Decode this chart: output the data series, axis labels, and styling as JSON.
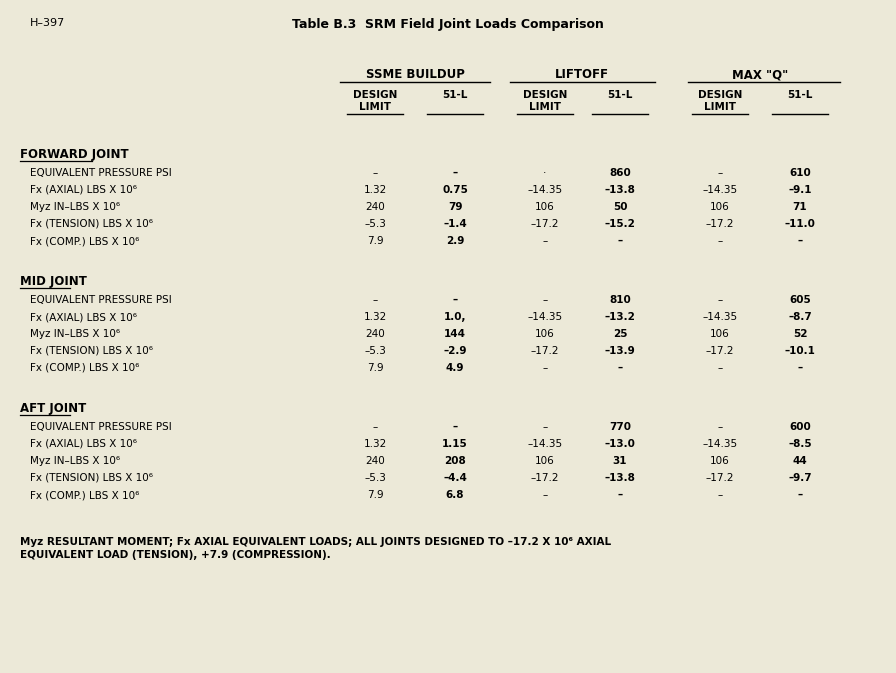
{
  "title": "Table B.3  SRM Field Joint Loads Comparison",
  "header_ref": "H–397",
  "bg_color": "#ece9d8",
  "groups": [
    "SSME BUILDUP",
    "LIFTOFF",
    "MAX \"Q\""
  ],
  "col_subheaders": [
    "DESIGN\nLIMIT",
    "51-L",
    "DESIGN\nLIMIT",
    "51-L",
    "DESIGN\nLIMIT",
    "51-L"
  ],
  "sections": [
    {
      "name": "FORWARD JOINT",
      "rows": [
        {
          "label": "EQUIVALENT PRESSURE PSI",
          "values": [
            "–",
            "–",
            "·",
            "860",
            "–",
            "610"
          ]
        },
        {
          "label": "Fx (AXIAL) LBS X 10⁶",
          "values": [
            "1.32",
            "0.75",
            "–14.35",
            "–13.8",
            "–14.35",
            "–9.1"
          ]
        },
        {
          "label": "Myz IN–LBS X 10⁶",
          "values": [
            "240",
            "79",
            "106",
            "50",
            "106",
            "71"
          ]
        },
        {
          "label": "Fx (TENSION) LBS X 10⁶",
          "values": [
            "–5.3",
            "–1.4",
            "–17.2",
            "–15.2",
            "–17.2",
            "–11.0"
          ]
        },
        {
          "label": "Fx (COMP.) LBS X 10⁶",
          "values": [
            "7.9",
            "2.9",
            "–",
            "–",
            "–",
            "–"
          ]
        }
      ]
    },
    {
      "name": "MID JOINT",
      "rows": [
        {
          "label": "EQUIVALENT PRESSURE PSI",
          "values": [
            "–",
            "–",
            "–",
            "810",
            "–",
            "605"
          ]
        },
        {
          "label": "Fx (AXIAL) LBS X 10⁶",
          "values": [
            "1.32",
            "1.0,",
            "–14.35",
            "–13.2",
            "–14.35",
            "–8.7"
          ]
        },
        {
          "label": "Myz IN–LBS X 10⁶",
          "values": [
            "240",
            "144",
            "106",
            "25",
            "106",
            "52"
          ]
        },
        {
          "label": "Fx (TENSION) LBS X 10⁶",
          "values": [
            "–5.3",
            "–2.9",
            "–17.2",
            "–13.9",
            "–17.2",
            "–10.1"
          ]
        },
        {
          "label": "Fx (COMP.) LBS X 10⁶",
          "values": [
            "7.9",
            "4.9",
            "–",
            "–",
            "–",
            "–"
          ]
        }
      ]
    },
    {
      "name": "AFT JOINT",
      "rows": [
        {
          "label": "EQUIVALENT PRESSURE PSI",
          "values": [
            "–",
            "–",
            "–",
            "770",
            "–",
            "600"
          ]
        },
        {
          "label": "Fx (AXIAL) LBS X 10⁶",
          "values": [
            "1.32",
            "1.15",
            "–14.35",
            "–13.0",
            "–14.35",
            "–8.5"
          ]
        },
        {
          "label": "Myz IN–LBS X 10⁶",
          "values": [
            "240",
            "208",
            "106",
            "31",
            "106",
            "44"
          ]
        },
        {
          "label": "Fx (TENSION) LBS X 10⁶",
          "values": [
            "–5.3",
            "–4.4",
            "–17.2",
            "–13.8",
            "–17.2",
            "–9.7"
          ]
        },
        {
          "label": "Fx (COMP.) LBS X 10⁶",
          "values": [
            "7.9",
            "6.8",
            "–",
            "–",
            "–",
            "–"
          ]
        }
      ]
    }
  ],
  "footnote_parts": [
    {
      "text": "Myz",
      "style": "italic_bold"
    },
    {
      "text": " RESULTANT MOMENT; ",
      "style": "bold"
    },
    {
      "text": "Fx",
      "style": "italic_bold"
    },
    {
      "text": " AXIAL EQUIVALENT LOADS; ALL JOINTS DESIGNED TO –17.2 X 10",
      "style": "bold"
    },
    {
      "text": "6",
      "style": "superscript_bold"
    },
    {
      "text": " AXIAL\nEQUIVALENT LOAD (TENSION), +7.9 (COMPRESSION).",
      "style": "bold"
    }
  ]
}
